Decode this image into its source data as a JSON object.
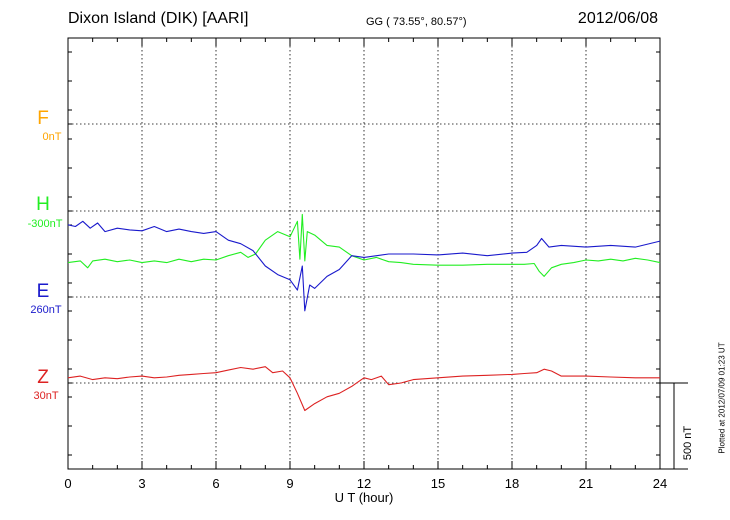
{
  "header": {
    "station": "Dixon Island (DIK)  [AARI]",
    "coords": "GG ( 73.55°,  80.57°)",
    "date": "2012/06/08"
  },
  "side_note": "Plotted at 2012/07/09 01:23 UT",
  "chart_data": {
    "type": "line",
    "title": "Dixon Island (DIK)  [AARI]",
    "xlabel": "U T (hour)",
    "xlim": [
      0,
      24
    ],
    "xticks": [
      "0",
      "3",
      "6",
      "9",
      "12",
      "15",
      "18",
      "21",
      "24"
    ],
    "grid": true,
    "scale_bar": {
      "label": "500 nT",
      "value": 500
    },
    "series": [
      {
        "name": "F",
        "baseline": "0nT",
        "color": "#ffa500",
        "x": [],
        "values": []
      },
      {
        "name": "H",
        "baseline": "-300nT",
        "color": "#22ee22",
        "x": [
          0,
          0.5,
          0.8,
          1,
          1.5,
          2,
          2.5,
          3,
          3.5,
          4,
          4.5,
          5,
          5.5,
          6,
          6.5,
          7,
          7.3,
          7.6,
          8,
          8.5,
          9,
          9.3,
          9.4,
          9.5,
          9.6,
          9.7,
          10,
          10.5,
          11,
          11.5,
          12,
          12.5,
          13,
          13.5,
          14,
          15,
          16,
          17,
          18,
          18.5,
          18.9,
          19.1,
          19.3,
          19.6,
          20,
          20.5,
          21,
          21.5,
          22,
          22.5,
          23,
          23.5,
          24
        ],
        "values": [
          -300,
          -290,
          -330,
          -290,
          -280,
          -295,
          -285,
          -300,
          -290,
          -300,
          -280,
          -295,
          -280,
          -285,
          -260,
          -240,
          -270,
          -250,
          -170,
          -120,
          -150,
          -60,
          -280,
          -20,
          -290,
          -120,
          -140,
          -200,
          -210,
          -260,
          -285,
          -270,
          -295,
          -300,
          -310,
          -315,
          -315,
          -310,
          -310,
          -310,
          -305,
          -350,
          -380,
          -330,
          -310,
          -300,
          -285,
          -290,
          -280,
          -290,
          -275,
          -285,
          -300
        ]
      },
      {
        "name": "E",
        "baseline": "260nT",
        "color": "#1a1acc",
        "x": [
          0,
          0.3,
          0.6,
          0.9,
          1.2,
          1.5,
          2,
          2.5,
          3,
          3.5,
          4,
          4.5,
          5,
          5.5,
          6,
          6.5,
          7,
          7.5,
          8,
          8.5,
          9,
          9.3,
          9.5,
          9.6,
          9.8,
          10,
          10.5,
          11,
          11.5,
          12,
          13,
          14,
          15,
          16,
          17,
          18,
          18.6,
          19,
          19.2,
          19.5,
          20,
          21,
          22,
          23,
          24
        ],
        "values": [
          420,
          410,
          440,
          400,
          430,
          380,
          400,
          390,
          385,
          410,
          380,
          395,
          380,
          370,
          380,
          330,
          310,
          270,
          180,
          130,
          100,
          40,
          180,
          -80,
          70,
          50,
          120,
          160,
          240,
          230,
          250,
          250,
          245,
          255,
          240,
          255,
          260,
          300,
          340,
          290,
          300,
          290,
          300,
          290,
          325
        ]
      },
      {
        "name": "Z",
        "baseline": "30nT",
        "color": "#dd2222",
        "x": [
          0,
          0.5,
          1,
          1.5,
          2,
          2.5,
          3,
          3.5,
          4,
          4.5,
          5,
          5.5,
          6,
          6.5,
          7,
          7.5,
          8,
          8.3,
          8.7,
          9,
          9.3,
          9.6,
          10,
          10.5,
          11,
          11.5,
          12,
          12.3,
          12.7,
          13,
          13.5,
          14,
          14.5,
          15,
          16,
          17,
          18,
          18.5,
          19,
          19.3,
          19.6,
          20,
          21,
          22,
          23,
          24
        ],
        "values": [
          30,
          40,
          20,
          30,
          25,
          35,
          40,
          30,
          35,
          45,
          50,
          55,
          60,
          75,
          90,
          80,
          95,
          60,
          70,
          30,
          -60,
          -160,
          -120,
          -80,
          -60,
          -20,
          30,
          20,
          40,
          -10,
          0,
          20,
          25,
          30,
          40,
          45,
          50,
          55,
          60,
          80,
          70,
          40,
          40,
          35,
          30,
          30
        ]
      }
    ]
  }
}
